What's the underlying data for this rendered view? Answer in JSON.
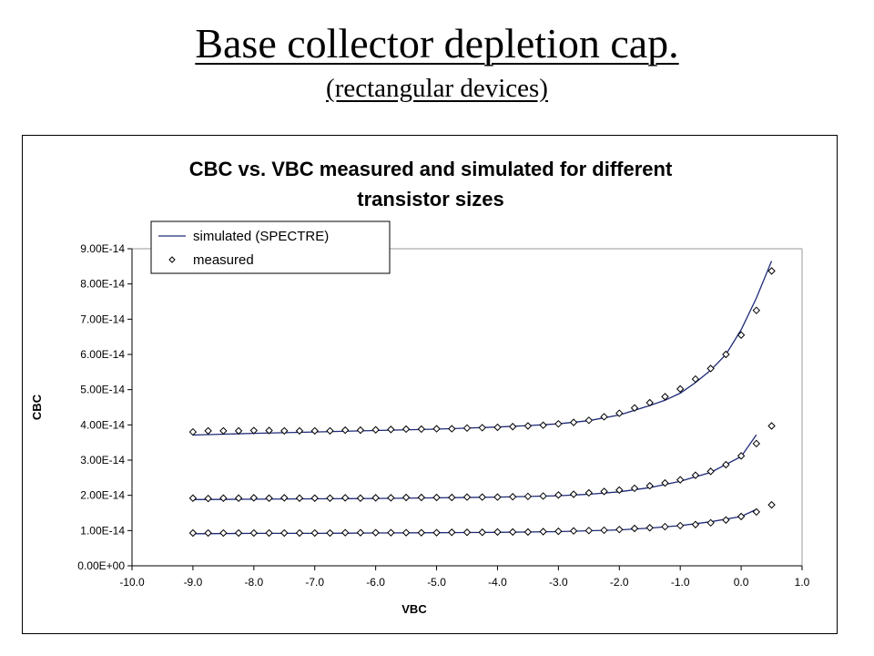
{
  "slide": {
    "title": "Base collector  depletion  cap.",
    "subtitle": "(rectangular devices)"
  },
  "chart_data": {
    "type": "line",
    "title_lines": [
      "CBC vs. VBC measured and simulated for different",
      "transistor sizes"
    ],
    "xlabel": "VBC",
    "ylabel": "CBC",
    "xlim": [
      -10.0,
      1.0
    ],
    "ylim": [
      0,
      9e-14
    ],
    "x_ticks": [
      "-10.0",
      "-9.0",
      "-8.0",
      "-7.0",
      "-6.0",
      "-5.0",
      "-4.0",
      "-3.0",
      "-2.0",
      "-1.0",
      "0.0",
      "1.0"
    ],
    "y_ticks": [
      "0.00E+00",
      "1.00E-14",
      "2.00E-14",
      "3.00E-14",
      "4.00E-14",
      "5.00E-14",
      "6.00E-14",
      "7.00E-14",
      "8.00E-14",
      "9.00E-14"
    ],
    "grid": false,
    "legend_position": "top-left",
    "legend": [
      {
        "label": "simulated (SPECTRE)",
        "marker": "line"
      },
      {
        "label": "measured",
        "marker": "diamond"
      }
    ],
    "colors": {
      "line": "#1f2a78",
      "marker": "#000000",
      "axis": "#000000",
      "plot_border": "#999999"
    },
    "series": [
      {
        "kind": "simulated",
        "x": [
          -9.0,
          -8.0,
          -7.0,
          -6.0,
          -5.0,
          -4.0,
          -3.5,
          -3.0,
          -2.5,
          -2.0,
          -1.5,
          -1.25,
          -1.0,
          -0.75,
          -0.5,
          -0.25,
          0.0,
          0.25,
          0.5
        ],
        "values": [
          3.71e-14,
          3.76e-14,
          3.8e-14,
          3.84e-14,
          3.88e-14,
          3.94e-14,
          3.98e-14,
          4.03e-14,
          4.12e-14,
          4.28e-14,
          4.55e-14,
          4.7e-14,
          4.9e-14,
          5.2e-14,
          5.55e-14,
          6e-14,
          6.7e-14,
          7.6e-14,
          8.65e-14
        ]
      },
      {
        "kind": "simulated",
        "x": [
          -9.0,
          -8.0,
          -7.0,
          -6.0,
          -5.0,
          -4.0,
          -3.0,
          -2.5,
          -2.0,
          -1.5,
          -1.0,
          -0.5,
          0.0,
          0.25
        ],
        "values": [
          1.88e-14,
          1.89e-14,
          1.9e-14,
          1.91e-14,
          1.93e-14,
          1.95e-14,
          1.99e-14,
          2.03e-14,
          2.1e-14,
          2.22e-14,
          2.4e-14,
          2.65e-14,
          3.1e-14,
          3.72e-14
        ]
      },
      {
        "kind": "simulated",
        "x": [
          -9.0,
          -8.0,
          -7.0,
          -6.0,
          -5.0,
          -4.0,
          -3.0,
          -2.0,
          -1.5,
          -1.0,
          -0.5,
          0.0,
          0.25
        ],
        "values": [
          9.1e-15,
          9.2e-15,
          9.2e-15,
          9.3e-15,
          9.4e-15,
          9.5e-15,
          9.7e-15,
          1.02e-14,
          1.07e-14,
          1.14e-14,
          1.25e-14,
          1.4e-14,
          1.6e-14
        ]
      },
      {
        "kind": "measured",
        "x": [
          -9.0,
          -8.75,
          -8.5,
          -8.25,
          -8.0,
          -7.75,
          -7.5,
          -7.25,
          -7.0,
          -6.75,
          -6.5,
          -6.25,
          -6.0,
          -5.75,
          -5.5,
          -5.25,
          -5.0,
          -4.75,
          -4.5,
          -4.25,
          -4.0,
          -3.75,
          -3.5,
          -3.25,
          -3.0,
          -2.75,
          -2.5,
          -2.25,
          -2.0,
          -1.75,
          -1.5,
          -1.25,
          -1.0,
          -0.75,
          -0.5,
          -0.25,
          0.0,
          0.25,
          0.5
        ],
        "values": [
          3.8e-14,
          3.83e-14,
          3.83e-14,
          3.83e-14,
          3.84e-14,
          3.84e-14,
          3.83e-14,
          3.83e-14,
          3.83e-14,
          3.83e-14,
          3.85e-14,
          3.85e-14,
          3.86e-14,
          3.87e-14,
          3.88e-14,
          3.88e-14,
          3.89e-14,
          3.89e-14,
          3.91e-14,
          3.92e-14,
          3.93e-14,
          3.95e-14,
          3.97e-14,
          3.99e-14,
          4.03e-14,
          4.07e-14,
          4.13e-14,
          4.23e-14,
          4.33e-14,
          4.48e-14,
          4.63e-14,
          4.8e-14,
          5.02e-14,
          5.3e-14,
          5.6e-14,
          6e-14,
          6.55e-14,
          7.25e-14,
          8.37e-14
        ]
      },
      {
        "kind": "measured",
        "x": [
          -9.0,
          -8.75,
          -8.5,
          -8.25,
          -8.0,
          -7.75,
          -7.5,
          -7.25,
          -7.0,
          -6.75,
          -6.5,
          -6.25,
          -6.0,
          -5.75,
          -5.5,
          -5.25,
          -5.0,
          -4.75,
          -4.5,
          -4.25,
          -4.0,
          -3.75,
          -3.5,
          -3.25,
          -3.0,
          -2.75,
          -2.5,
          -2.25,
          -2.0,
          -1.75,
          -1.5,
          -1.25,
          -1.0,
          -0.75,
          -0.5,
          -0.25,
          0.0,
          0.25,
          0.5
        ],
        "values": [
          1.92e-14,
          1.91e-14,
          1.92e-14,
          1.92e-14,
          1.93e-14,
          1.92e-14,
          1.93e-14,
          1.92e-14,
          1.92e-14,
          1.92e-14,
          1.93e-14,
          1.92e-14,
          1.93e-14,
          1.93e-14,
          1.94e-14,
          1.94e-14,
          1.94e-14,
          1.94e-14,
          1.95e-14,
          1.95e-14,
          1.95e-14,
          1.96e-14,
          1.97e-14,
          1.98e-14,
          2.01e-14,
          2.03e-14,
          2.07e-14,
          2.11e-14,
          2.15e-14,
          2.2e-14,
          2.27e-14,
          2.35e-14,
          2.44e-14,
          2.57e-14,
          2.68e-14,
          2.87e-14,
          3.12e-14,
          3.47e-14,
          3.97e-14
        ]
      },
      {
        "kind": "measured",
        "x": [
          -9.0,
          -8.75,
          -8.5,
          -8.25,
          -8.0,
          -7.75,
          -7.5,
          -7.25,
          -7.0,
          -6.75,
          -6.5,
          -6.25,
          -6.0,
          -5.75,
          -5.5,
          -5.25,
          -5.0,
          -4.75,
          -4.5,
          -4.25,
          -4.0,
          -3.75,
          -3.5,
          -3.25,
          -3.0,
          -2.75,
          -2.5,
          -2.25,
          -2.0,
          -1.75,
          -1.5,
          -1.25,
          -1.0,
          -0.75,
          -0.5,
          -0.25,
          0.0,
          0.25,
          0.5
        ],
        "values": [
          9.3e-15,
          9.3e-15,
          9.3e-15,
          9.3e-15,
          9.3e-15,
          9.3e-15,
          9.3e-15,
          9.3e-15,
          9.3e-15,
          9.3e-15,
          9.4e-15,
          9.4e-15,
          9.4e-15,
          9.4e-15,
          9.4e-15,
          9.4e-15,
          9.4e-15,
          9.5e-15,
          9.5e-15,
          9.5e-15,
          9.6e-15,
          9.6e-15,
          9.6e-15,
          9.7e-15,
          9.8e-15,
          9.9e-15,
          1e-14,
          1.01e-14,
          1.03e-14,
          1.06e-14,
          1.08e-14,
          1.11e-14,
          1.14e-14,
          1.17e-14,
          1.22e-14,
          1.3e-14,
          1.4e-14,
          1.53e-14,
          1.73e-14
        ]
      }
    ]
  }
}
